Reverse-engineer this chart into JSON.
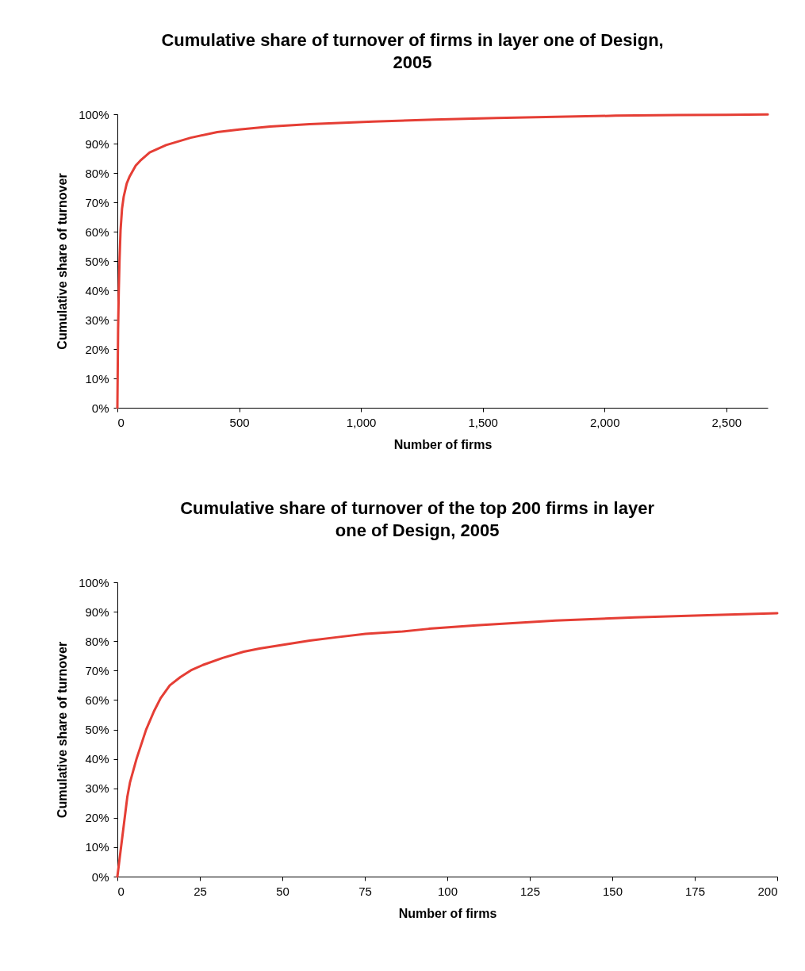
{
  "chart_data": [
    {
      "type": "line",
      "title": "Cumulative share of turnover of firms in layer one of Design,\n2005",
      "xlabel": "Number of firms",
      "ylabel": "Cumulative share of turnover",
      "series": [
        {
          "color": "#e53e35",
          "x": [
            0,
            3,
            5.8,
            8.7,
            13.1,
            19.1,
            25.9,
            38.3,
            50.3,
            75.2,
            94.4,
            132.8,
            200,
            301,
            410,
            500,
            627,
            789,
            1050,
            1300,
            1556,
            1800,
            2045,
            2300,
            2500,
            2670
          ],
          "values": [
            0,
            27,
            40,
            49.9,
            60.6,
            67.8,
            71.9,
            76.4,
            78.8,
            82.5,
            84.2,
            87,
            89.5,
            92,
            93.9,
            94.8,
            95.8,
            96.6,
            97.5,
            98.2,
            98.7,
            99.1,
            99.5,
            99.7,
            99.8,
            99.9
          ]
        }
      ],
      "xlim": [
        0,
        2670
      ],
      "xticks": [
        0,
        500,
        {
          "value": 1000,
          "label": "1,000"
        },
        {
          "value": 1500,
          "label": "1,500"
        },
        {
          "value": 2000,
          "label": "2,000"
        },
        {
          "value": 2500,
          "label": "2,500"
        }
      ],
      "ylim": [
        0,
        100
      ],
      "yticks": [
        {
          "value": 0,
          "label": "0%"
        },
        {
          "value": 10,
          "label": "10%"
        },
        {
          "value": 20,
          "label": "20%"
        },
        {
          "value": 30,
          "label": "30%"
        },
        {
          "value": 40,
          "label": "40%"
        },
        {
          "value": 50,
          "label": "50%"
        },
        {
          "value": 60,
          "label": "60%"
        },
        {
          "value": 70,
          "label": "70%"
        },
        {
          "value": 80,
          "label": "80%"
        },
        {
          "value": 90,
          "label": "90%"
        },
        {
          "value": 100,
          "label": "100%"
        }
      ],
      "grid": false
    },
    {
      "type": "line",
      "title": "Cumulative share of turnover of the top 200 firms in layer\none of Design, 2005",
      "xlabel": "Number of firms",
      "ylabel": "Cumulative share of turnover",
      "series": [
        {
          "color": "#e53e35",
          "x": [
            0,
            3,
            3.8,
            5.8,
            8.7,
            11.1,
            13.1,
            15.9,
            19.1,
            22.3,
            25.9,
            31.9,
            38.3,
            43.1,
            50.3,
            58.3,
            66.3,
            75.2,
            86.4,
            94.4,
            108.8,
            132.8,
            156.9,
            180.9,
            200
          ],
          "values": [
            0,
            27,
            31.9,
            40,
            49.9,
            56.2,
            60.6,
            65,
            67.8,
            70.1,
            71.9,
            74.3,
            76.4,
            77.5,
            78.8,
            80.2,
            81.3,
            82.5,
            83.3,
            84.2,
            85.4,
            87,
            88.1,
            88.9,
            89.5
          ]
        }
      ],
      "xlim": [
        0,
        200
      ],
      "xticks": [
        0,
        25,
        50,
        75,
        100,
        125,
        150,
        175,
        200
      ],
      "ylim": [
        0,
        100
      ],
      "yticks": [
        {
          "value": 0,
          "label": "0%"
        },
        {
          "value": 10,
          "label": "10%"
        },
        {
          "value": 20,
          "label": "20%"
        },
        {
          "value": 30,
          "label": "30%"
        },
        {
          "value": 40,
          "label": "40%"
        },
        {
          "value": 50,
          "label": "50%"
        },
        {
          "value": 60,
          "label": "60%"
        },
        {
          "value": 70,
          "label": "70%"
        },
        {
          "value": 80,
          "label": "80%"
        },
        {
          "value": 90,
          "label": "90%"
        },
        {
          "value": 100,
          "label": "100%"
        }
      ],
      "grid": false
    }
  ]
}
